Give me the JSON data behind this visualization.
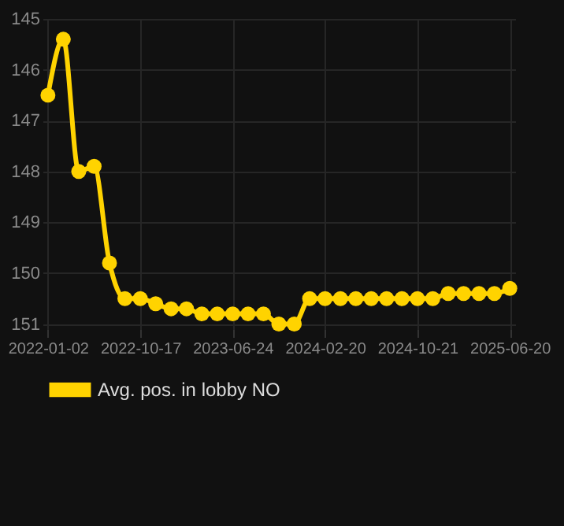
{
  "chart_data": {
    "type": "line",
    "categories": [
      "2022-01-02",
      null,
      null,
      null,
      null,
      null,
      "2022-10-17",
      null,
      null,
      null,
      null,
      null,
      "2023-06-24",
      null,
      null,
      null,
      null,
      null,
      "2024-02-20",
      null,
      null,
      null,
      null,
      null,
      "2024-10-21",
      null,
      null,
      null,
      null,
      null,
      "2025-06-20"
    ],
    "series": [
      {
        "name": "Avg. pos. in lobby NO",
        "color": "#ffd300",
        "values": [
          146.5,
          145.4,
          148.0,
          147.9,
          149.8,
          150.5,
          150.5,
          150.6,
          150.7,
          150.7,
          150.8,
          150.8,
          150.8,
          150.8,
          150.8,
          151.0,
          151.0,
          150.5,
          150.5,
          150.5,
          150.5,
          150.5,
          150.5,
          150.5,
          150.5,
          150.5,
          150.4,
          150.4,
          150.4,
          150.4,
          150.3
        ]
      }
    ],
    "ylim": [
      151.1,
      145
    ],
    "yticks": [
      145,
      146,
      147,
      148,
      149,
      150,
      151
    ],
    "grid": true,
    "legend": "bottom",
    "marker": "circle",
    "line_style": "solid"
  }
}
